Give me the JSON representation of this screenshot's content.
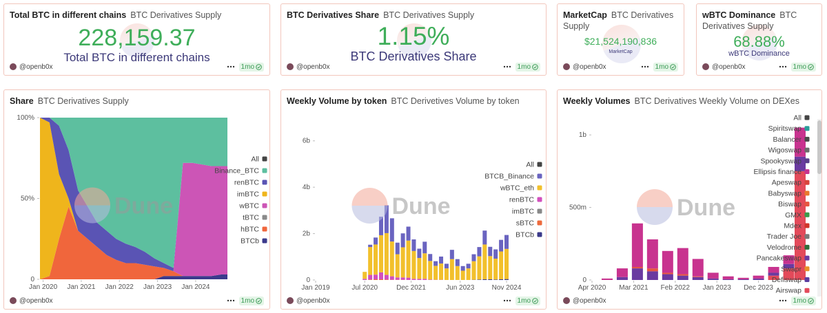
{
  "author": "@openb0x",
  "age": "1mo",
  "watermark": "Dune",
  "counters": [
    {
      "title": "Total BTC in different chains",
      "subtitle": "BTC Derivatives Supply",
      "value": "228,159.37",
      "label": "Total BTC in different chains"
    },
    {
      "title": "BTC Derivatives Share",
      "subtitle": "BTC Derivatives Supply",
      "value": "1.15%",
      "label": "BTC Derivatives Share"
    },
    {
      "title": "MarketCap",
      "subtitle": "BTC Derivatives Supply",
      "value": "$21,524,190,836",
      "label": "MarketCap"
    },
    {
      "title": "wBTC Dominance",
      "subtitle": "BTC Derivatives Supply",
      "value": "68.88%",
      "label": "wBTC Dominance"
    }
  ],
  "chart_data": [
    {
      "type": "area",
      "title": "Share",
      "subtitle": "BTC Derivatives Supply",
      "legend_all": "All",
      "x": [
        "2019-12",
        "2020-03",
        "2020-06",
        "2020-09",
        "2020-12",
        "2021-03",
        "2021-06",
        "2021-09",
        "2021-12",
        "2022-03",
        "2022-06",
        "2022-09",
        "2022-12",
        "2023-03",
        "2023-06",
        "2023-09",
        "2023-12",
        "2024-03",
        "2024-06",
        "2024-09",
        "2024-11"
      ],
      "xlim": [
        "2019-12",
        "2024-11"
      ],
      "xticks": [
        {
          "value": "2020-01",
          "label": "Jan 2020"
        },
        {
          "value": "2021-01",
          "label": "Jan 2021"
        },
        {
          "value": "2022-01",
          "label": "Jan 2022"
        },
        {
          "value": "2023-01",
          "label": "Jan 2023"
        },
        {
          "value": "2024-01",
          "label": "Jan 2024"
        }
      ],
      "ylim": [
        0,
        100
      ],
      "yticks": [
        0,
        {
          "value": 50,
          "label": "50%"
        },
        {
          "value": 100,
          "label": "100%"
        }
      ],
      "series": [
        {
          "name": "Binance_BTC",
          "color": "#5dbf9f",
          "values": [
            0,
            0,
            5,
            20,
            45,
            55,
            65,
            70,
            75,
            78,
            80,
            83,
            87,
            90,
            93,
            28,
            28,
            29,
            30,
            30,
            30
          ]
        },
        {
          "name": "renBTC",
          "color": "#5a54b4",
          "values": [
            0,
            3,
            30,
            30,
            25,
            20,
            15,
            15,
            13,
            12,
            10,
            8,
            5,
            3,
            2,
            0,
            0,
            0,
            0,
            0,
            0
          ]
        },
        {
          "name": "imBTC",
          "color": "#efb51c",
          "values": [
            100,
            95,
            40,
            5,
            0,
            0,
            0,
            0,
            0,
            0,
            0,
            0,
            0,
            0,
            0,
            0,
            0,
            0,
            0,
            0,
            0
          ]
        },
        {
          "name": "wBTC",
          "color": "#cc55b6",
          "values": [
            0,
            0,
            0,
            0,
            0,
            0,
            0,
            0,
            0,
            0,
            0,
            0,
            0,
            0,
            0,
            70,
            70,
            69,
            68,
            67,
            67
          ]
        },
        {
          "name": "tBTC",
          "color": "#8a8a8a",
          "values": [
            0,
            0,
            0,
            0,
            0,
            0,
            0,
            0,
            0,
            0,
            0,
            0,
            0,
            0,
            0,
            0,
            0,
            0,
            0,
            0,
            0
          ]
        },
        {
          "name": "hBTC",
          "color": "#f0663c",
          "values": [
            0,
            2,
            25,
            45,
            30,
            25,
            20,
            15,
            12,
            10,
            10,
            9,
            8,
            5,
            3,
            0,
            0,
            0,
            0,
            0,
            0
          ]
        },
        {
          "name": "BTCb",
          "color": "#3b3a8c",
          "values": [
            0,
            0,
            0,
            0,
            0,
            0,
            0,
            0,
            0,
            0,
            0,
            0,
            0,
            2,
            2,
            2,
            2,
            2,
            2,
            3,
            3
          ]
        }
      ]
    },
    {
      "type": "bar",
      "title": "Weekly Volume by token",
      "subtitle": "BTC Derivetives Volume by token",
      "legend_all": "All",
      "x": [
        "2020-07",
        "2020-09",
        "2020-11",
        "2021-01",
        "2021-03",
        "2021-05",
        "2021-07",
        "2021-09",
        "2021-11",
        "2022-01",
        "2022-03",
        "2022-05",
        "2022-07",
        "2022-09",
        "2022-11",
        "2023-01",
        "2023-03",
        "2023-05",
        "2023-07",
        "2023-09",
        "2023-11",
        "2024-01",
        "2024-03",
        "2024-05",
        "2024-07",
        "2024-09",
        "2024-11"
      ],
      "xlim": [
        "2019-01",
        "2024-11"
      ],
      "xticks": [
        {
          "value": "2019-01",
          "label": "Jan 2019"
        },
        {
          "value": "2020-07",
          "label": "Jul 2020"
        },
        {
          "value": "2021-12",
          "label": "Dec 2021"
        },
        {
          "value": "2023-06",
          "label": "Jun 2023"
        },
        {
          "value": "2024-11",
          "label": "Nov 2024"
        }
      ],
      "ylim": [
        0,
        7000000000.0
      ],
      "yticks": [
        0,
        {
          "value": 2000000000.0,
          "label": "2b"
        },
        {
          "value": 4000000000.0,
          "label": "4b"
        },
        {
          "value": 6000000000.0,
          "label": "6b"
        }
      ],
      "series": [
        {
          "name": "BTCB_Binance",
          "color": "#6a64c0",
          "values": [
            0,
            100000000.0,
            300000000.0,
            800000000.0,
            1200000000.0,
            1000000000.0,
            500000000.0,
            600000000.0,
            600000000.0,
            500000000.0,
            400000000.0,
            500000000.0,
            300000000.0,
            200000000.0,
            300000000.0,
            200000000.0,
            400000000.0,
            300000000.0,
            200000000.0,
            200000000.0,
            300000000.0,
            400000000.0,
            600000000.0,
            400000000.0,
            400000000.0,
            500000000.0,
            600000000.0
          ]
        },
        {
          "name": "wBTC_eth",
          "color": "#f2c02c",
          "values": [
            300000000.0,
            1200000000.0,
            1300000000.0,
            1600000000.0,
            1800000000.0,
            1500000000.0,
            1000000000.0,
            1300000000.0,
            1600000000.0,
            1200000000.0,
            900000000.0,
            1100000000.0,
            800000000.0,
            600000000.0,
            700000000.0,
            500000000.0,
            900000000.0,
            600000000.0,
            400000000.0,
            500000000.0,
            800000000.0,
            1000000000.0,
            1500000000.0,
            1000000000.0,
            900000000.0,
            1200000000.0,
            1300000000.0
          ]
        },
        {
          "name": "renBTC",
          "color": "#d24fbd",
          "values": [
            50000000.0,
            200000000.0,
            200000000.0,
            300000000.0,
            200000000.0,
            150000000.0,
            100000000.0,
            100000000.0,
            100000000.0,
            50000000.0,
            50000000.0,
            50000000.0,
            20000000.0,
            10000000.0,
            10000000.0,
            0,
            0,
            0,
            0,
            0,
            0,
            0,
            0,
            0,
            0,
            0,
            0
          ]
        },
        {
          "name": "imBTC",
          "color": "#888888",
          "values": [
            0,
            0,
            0,
            0,
            0,
            0,
            0,
            0,
            0,
            0,
            0,
            0,
            0,
            0,
            0,
            0,
            0,
            0,
            0,
            0,
            0,
            0,
            0,
            0,
            0,
            0,
            0
          ]
        },
        {
          "name": "sBTC",
          "color": "#ee6a3c",
          "values": [
            0,
            20000000.0,
            30000000.0,
            30000000.0,
            20000000.0,
            10000000.0,
            10000000.0,
            10000000.0,
            0,
            0,
            0,
            0,
            0,
            0,
            0,
            0,
            0,
            0,
            0,
            0,
            0,
            0,
            0,
            0,
            0,
            0,
            0
          ]
        },
        {
          "name": "BTCb",
          "color": "#3b3a8a",
          "values": [
            0,
            0,
            0,
            0,
            0,
            0,
            0,
            0,
            0,
            0,
            0,
            0,
            0,
            0,
            0,
            0,
            0,
            0,
            0,
            0,
            10000000.0,
            20000000.0,
            30000000.0,
            30000000.0,
            20000000.0,
            30000000.0,
            40000000.0
          ]
        }
      ]
    },
    {
      "type": "bar",
      "title": "Weekly Volumes",
      "subtitle": "BTC Derivatives Weekly Volume on DEXes",
      "legend_all": "All",
      "x": [
        "2020-04",
        "2020-08",
        "2020-12",
        "2021-04",
        "2021-08",
        "2021-12",
        "2022-04",
        "2022-08",
        "2022-12",
        "2023-04",
        "2023-08",
        "2023-12",
        "2024-04",
        "2024-08",
        "2024-11"
      ],
      "xlim": [
        "2020-04",
        "2024-11"
      ],
      "xticks": [
        {
          "value": "2020-04",
          "label": "Apr 2020"
        },
        {
          "value": "2021-03",
          "label": "Mar 2021"
        },
        {
          "value": "2022-02",
          "label": "Feb 2022"
        },
        {
          "value": "2023-01",
          "label": "Jan 2023"
        },
        {
          "value": "2023-12",
          "label": "Dec 2023"
        }
      ],
      "ylim": [
        0,
        1100000000.0
      ],
      "yticks": [
        0,
        {
          "value": 500000000.0,
          "label": "500m"
        },
        {
          "value": 1000000000.0,
          "label": "1b"
        }
      ],
      "series": [
        {
          "name": "Spiritswap",
          "color": "#2a9d9a",
          "values": [
            0,
            0,
            0,
            0,
            0,
            0,
            0,
            0,
            0,
            0,
            0,
            0,
            0,
            0,
            0
          ]
        },
        {
          "name": "Balancer",
          "color": "#4a4a4a",
          "values": [
            0,
            0,
            0,
            0,
            0,
            0,
            0,
            0,
            0,
            0,
            0,
            0,
            0,
            0,
            0
          ]
        },
        {
          "name": "Wigoswap",
          "color": "#6b6b6b",
          "values": [
            0,
            0,
            0,
            0,
            0,
            0,
            0,
            0,
            0,
            0,
            0,
            0,
            0,
            0,
            0
          ]
        },
        {
          "name": "Spookyswap",
          "color": "#5a3d8a",
          "values": [
            0,
            0,
            0,
            0,
            0,
            0,
            0,
            0,
            0,
            0,
            0,
            0,
            0,
            0,
            0
          ]
        },
        {
          "name": "Ellipsis finance",
          "color": "#c8338f",
          "values": [
            0,
            10000000.0,
            60000000.0,
            300000000.0,
            200000000.0,
            150000000.0,
            180000000.0,
            120000000.0,
            40000000.0,
            20000000.0,
            10000000.0,
            20000000.0,
            40000000.0,
            60000000.0,
            200000000.0
          ]
        },
        {
          "name": "Apeswap",
          "color": "#d8433c",
          "values": [
            0,
            0,
            0,
            0,
            0,
            0,
            0,
            0,
            0,
            0,
            0,
            0,
            0,
            0,
            0
          ]
        },
        {
          "name": "Babyswap",
          "color": "#e9782c",
          "values": [
            0,
            0,
            0,
            0,
            0,
            0,
            0,
            0,
            0,
            0,
            0,
            0,
            0,
            0,
            0
          ]
        },
        {
          "name": "Biswap",
          "color": "#e65540",
          "values": [
            0,
            0,
            0,
            10000000.0,
            20000000.0,
            10000000.0,
            10000000.0,
            5000000.0,
            0,
            0,
            0,
            0,
            0,
            0,
            0
          ]
        },
        {
          "name": "GMX",
          "color": "#3a9a4a",
          "values": [
            0,
            0,
            0,
            0,
            0,
            0,
            0,
            0,
            0,
            0,
            0,
            0,
            0,
            0,
            0
          ]
        },
        {
          "name": "Mdex",
          "color": "#d0352a",
          "values": [
            0,
            0,
            0,
            0,
            0,
            0,
            0,
            0,
            0,
            0,
            0,
            0,
            0,
            0,
            0
          ]
        },
        {
          "name": "Trader Joe",
          "color": "#7a7a7a",
          "values": [
            0,
            0,
            0,
            0,
            0,
            0,
            0,
            0,
            0,
            0,
            0,
            0,
            0,
            0,
            0
          ]
        },
        {
          "name": "Velodrome",
          "color": "#2f6e3a",
          "values": [
            0,
            0,
            0,
            0,
            0,
            0,
            0,
            0,
            0,
            0,
            0,
            0,
            0,
            0,
            0
          ]
        },
        {
          "name": "Pancakeswap",
          "color": "#6a3aa0",
          "values": [
            0,
            0,
            20000000.0,
            80000000.0,
            60000000.0,
            40000000.0,
            30000000.0,
            20000000.0,
            10000000.0,
            5000000.0,
            5000000.0,
            10000000.0,
            20000000.0,
            30000000.0,
            100000000.0
          ]
        },
        {
          "name": "Swapr",
          "color": "#e8902a",
          "values": [
            0,
            0,
            0,
            0,
            0,
            0,
            0,
            0,
            0,
            0,
            0,
            0,
            0,
            0,
            0
          ]
        },
        {
          "name": "Defiswap",
          "color": "#5b3da0",
          "values": [
            0,
            0,
            0,
            0,
            0,
            0,
            0,
            0,
            0,
            0,
            0,
            0,
            0,
            0,
            0
          ]
        },
        {
          "name": "Airswap",
          "color": "#e34a5a",
          "values": [
            0,
            0,
            0,
            0,
            0,
            0,
            0,
            0,
            0,
            0,
            0,
            0,
            30000000.0,
            80000000.0,
            750000000.0
          ]
        }
      ]
    }
  ]
}
